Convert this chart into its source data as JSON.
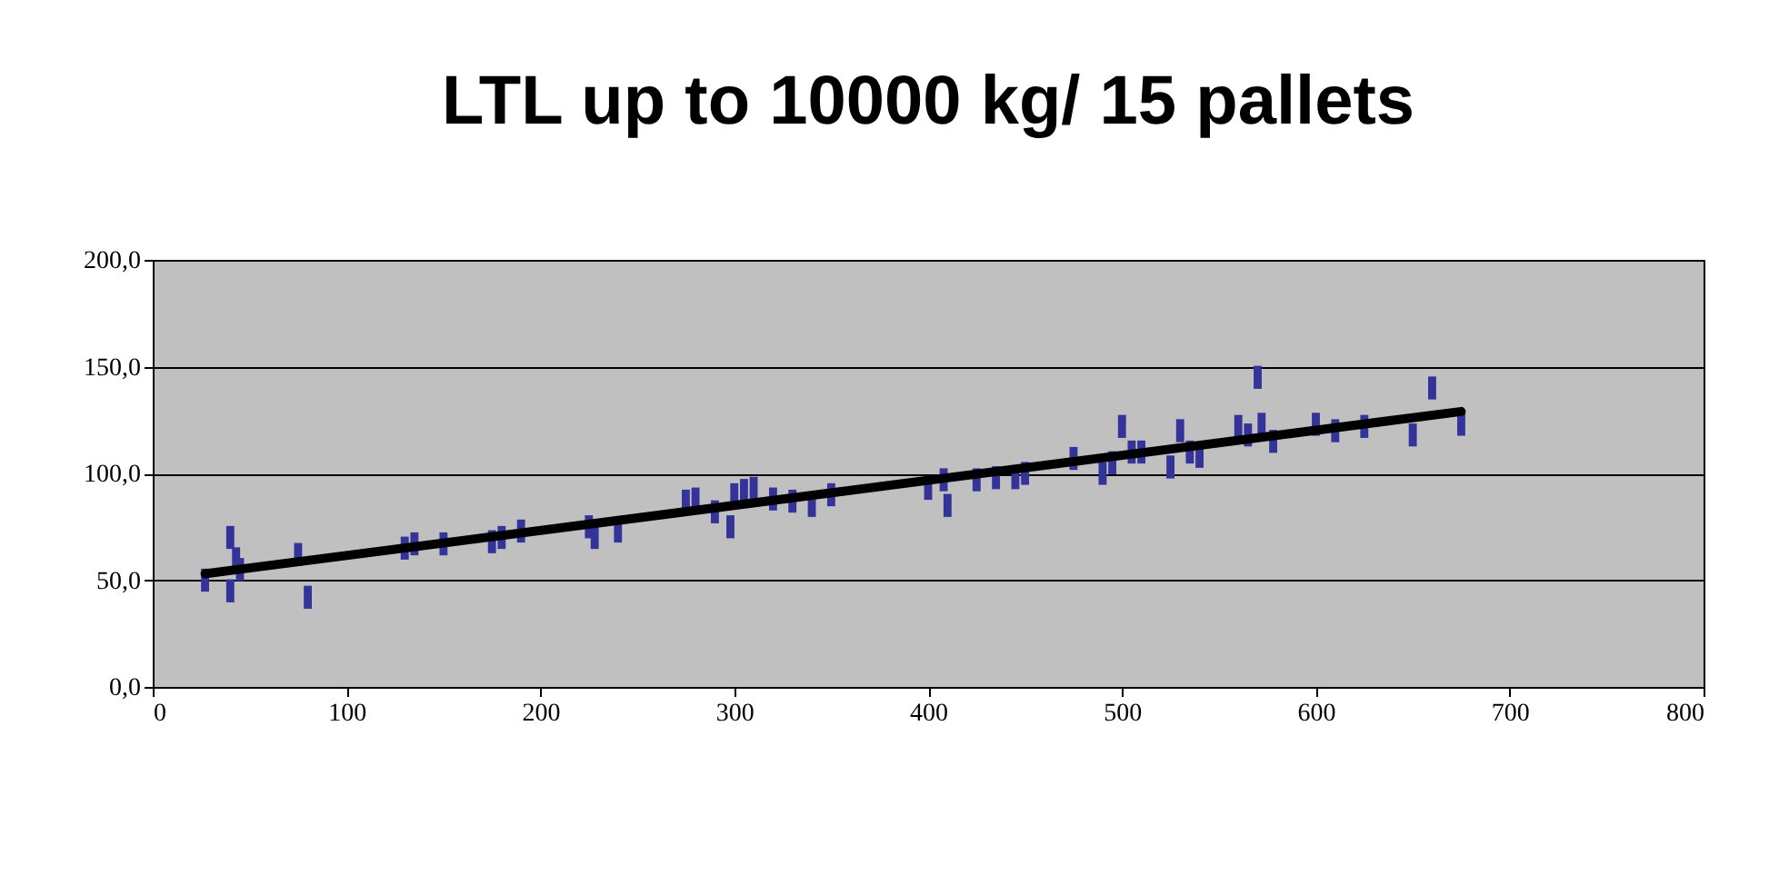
{
  "chart_data": {
    "type": "scatter",
    "title": "LTL up to 10000 kg/ 15 pallets",
    "xlim": [
      0,
      800
    ],
    "xticks": [
      0,
      100,
      200,
      300,
      400,
      500,
      600,
      700,
      800
    ],
    "ylim": [
      0,
      200
    ],
    "yticks": [
      {
        "value": 0,
        "label": "0,0"
      },
      {
        "value": 50,
        "label": "50,0"
      },
      {
        "value": 100,
        "label": "100,0"
      },
      {
        "value": 150,
        "label": "150,0"
      },
      {
        "value": 200,
        "label": "200,0"
      }
    ],
    "grid": "y",
    "marker": "square",
    "series": [
      {
        "color": "#333399",
        "x": [
          27,
          40,
          40,
          43,
          45,
          75,
          80,
          130,
          135,
          150,
          175,
          180,
          190,
          225,
          228,
          240,
          275,
          280,
          290,
          298,
          300,
          305,
          310,
          320,
          330,
          340,
          350,
          400,
          408,
          410,
          425,
          435,
          445,
          450,
          475,
          490,
          495,
          500,
          505,
          510,
          525,
          530,
          535,
          540,
          560,
          565,
          570,
          572,
          578,
          600,
          610,
          625,
          650,
          660,
          675
        ],
        "values": [
          50,
          70,
          45,
          60,
          55,
          62,
          42,
          65,
          67,
          67,
          68,
          70,
          73,
          75,
          70,
          73,
          87,
          88,
          82,
          75,
          90,
          92,
          93,
          88,
          87,
          85,
          90,
          93,
          97,
          85,
          97,
          98,
          98,
          100,
          107,
          100,
          105,
          122,
          110,
          110,
          103,
          120,
          110,
          108,
          122,
          118,
          145,
          123,
          115,
          123,
          120,
          122,
          118,
          140,
          123
        ]
      },
      {
        "type": "line",
        "color": "#000000",
        "marker": "none",
        "x": [
          27,
          675
        ],
        "values": [
          53,
          129
        ]
      }
    ]
  }
}
